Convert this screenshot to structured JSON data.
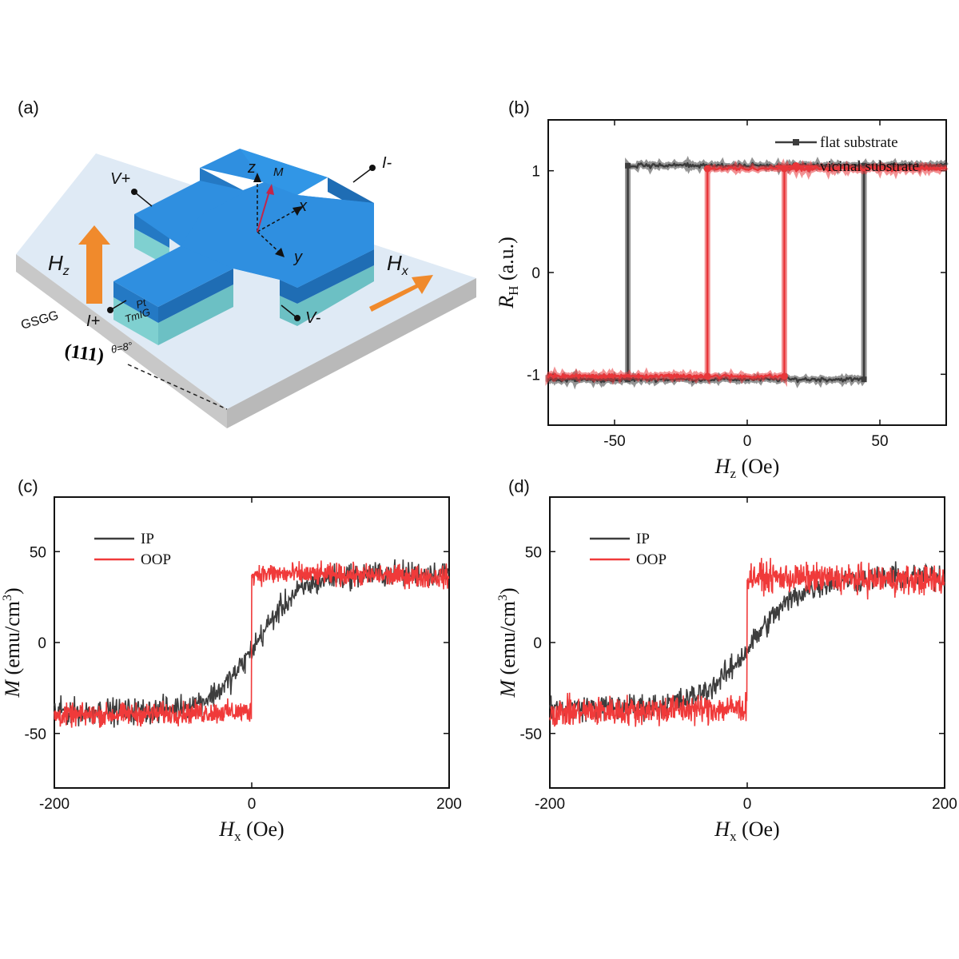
{
  "panels": {
    "a": "(a)",
    "b": "(b)",
    "c": "(c)",
    "d": "(d)"
  },
  "diagram": {
    "labels": {
      "v_plus": "V+",
      "v_minus": "V-",
      "i_plus": "I+",
      "i_minus": "I-",
      "hz": "H",
      "hz_sub": "z",
      "hx": "H",
      "hx_sub": "x",
      "z_axis": "z",
      "x_axis": "x",
      "y_axis": "y",
      "m_vector": "M",
      "pt": "Pt",
      "tmig": "TmIG",
      "gsgg": "GSGG",
      "orientation": "(111)",
      "angle": "θ=8°"
    },
    "colors": {
      "pt_top": "#2f8fe0",
      "pt_side": "#2479c4",
      "tmig": "#7fd0d0",
      "substrate_top": "#dfeaf5",
      "substrate_side": "#c9c9c9",
      "arrow": "#f08a2c",
      "m_arrow": "#c2264a"
    }
  },
  "chart_data": [
    {
      "id": "b",
      "type": "line",
      "xlabel_main": "H",
      "xlabel_sub": "z",
      "xlabel_unit": " (Oe)",
      "ylabel_main": "R",
      "ylabel_sub": "H",
      "ylabel_unit": " (a.u.)",
      "xlim": [
        -75,
        75
      ],
      "ylim": [
        -1.5,
        1.5
      ],
      "xticks": [
        -50,
        0,
        50
      ],
      "xtick_labels": [
        "-50",
        "0",
        "50"
      ],
      "yticks": [
        -1,
        0,
        1
      ],
      "ytick_labels": [
        "-1",
        "0",
        "1"
      ],
      "legend_position": "top-right",
      "series": [
        {
          "name": "flat substrate",
          "color": "#3d3d3d",
          "marker": "square",
          "switch_fields": [
            -45,
            44
          ],
          "upper": 1.05,
          "lower": -1.05
        },
        {
          "name": "vicinal substrate",
          "color": "#e8373a",
          "marker": "circle",
          "switch_fields": [
            -15,
            14
          ],
          "upper": 1.02,
          "lower": -1.02
        }
      ]
    },
    {
      "id": "c",
      "type": "line",
      "xlabel_main": "H",
      "xlabel_sub": "x",
      "xlabel_unit": " (Oe)",
      "ylabel_main": "M",
      "ylabel_unit": " (emu/cm",
      "ylabel_sup": "3",
      "ylabel_close": ")",
      "xlim": [
        -200,
        200
      ],
      "ylim": [
        -80,
        80
      ],
      "xticks": [
        -200,
        0,
        200
      ],
      "xtick_labels": [
        "-200",
        "0",
        "200"
      ],
      "yticks": [
        -50,
        0,
        50
      ],
      "ytick_labels": [
        "-50",
        "0",
        "50"
      ],
      "legend_position": "top-left",
      "series": [
        {
          "name": "IP",
          "color": "#3d3d3d",
          "kind": "gradual",
          "saturation": 38,
          "width": 45
        },
        {
          "name": "OOP",
          "color": "#f03a3a",
          "kind": "step",
          "saturation": 38,
          "noise": 6
        }
      ]
    },
    {
      "id": "d",
      "type": "line",
      "xlabel_main": "H",
      "xlabel_sub": "x",
      "xlabel_unit": " (Oe)",
      "ylabel_main": "M",
      "ylabel_unit": " (emu/cm",
      "ylabel_sup": "3",
      "ylabel_close": ")",
      "xlim": [
        -200,
        200
      ],
      "ylim": [
        -80,
        80
      ],
      "xticks": [
        -200,
        0,
        200
      ],
      "xtick_labels": [
        "-200",
        "0",
        "200"
      ],
      "yticks": [
        -50,
        0,
        50
      ],
      "ytick_labels": [
        "-50",
        "0",
        "50"
      ],
      "legend_position": "top-left",
      "series": [
        {
          "name": "IP",
          "color": "#3d3d3d",
          "kind": "gradual",
          "saturation": 36,
          "width": 50
        },
        {
          "name": "OOP",
          "color": "#f03a3a",
          "kind": "step",
          "saturation": 36,
          "noise": 8
        }
      ]
    }
  ]
}
